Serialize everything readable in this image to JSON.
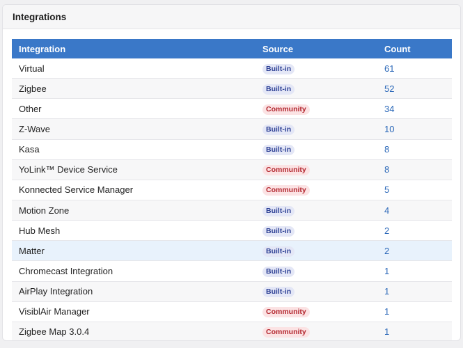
{
  "panel": {
    "title": "Integrations"
  },
  "table": {
    "headers": {
      "integration": "Integration",
      "source": "Source",
      "count": "Count"
    },
    "rows": [
      {
        "name": "Virtual",
        "source": "Built-in",
        "source_type": "builtin",
        "count": "61"
      },
      {
        "name": "Zigbee",
        "source": "Built-in",
        "source_type": "builtin",
        "count": "52"
      },
      {
        "name": "Other",
        "source": "Community",
        "source_type": "community",
        "count": "34"
      },
      {
        "name": "Z-Wave",
        "source": "Built-in",
        "source_type": "builtin",
        "count": "10"
      },
      {
        "name": "Kasa",
        "source": "Built-in",
        "source_type": "builtin",
        "count": "8"
      },
      {
        "name": "YoLink™ Device Service",
        "source": "Community",
        "source_type": "community",
        "count": "8"
      },
      {
        "name": "Konnected Service Manager",
        "source": "Community",
        "source_type": "community",
        "count": "5"
      },
      {
        "name": "Motion Zone",
        "source": "Built-in",
        "source_type": "builtin",
        "count": "4"
      },
      {
        "name": "Hub Mesh",
        "source": "Built-in",
        "source_type": "builtin",
        "count": "2"
      },
      {
        "name": "Matter",
        "source": "Built-in",
        "source_type": "builtin",
        "count": "2"
      },
      {
        "name": "Chromecast Integration",
        "source": "Built-in",
        "source_type": "builtin",
        "count": "1"
      },
      {
        "name": "AirPlay Integration",
        "source": "Built-in",
        "source_type": "builtin",
        "count": "1"
      },
      {
        "name": "VisiblAir Manager",
        "source": "Community",
        "source_type": "community",
        "count": "1"
      },
      {
        "name": "Zigbee Map 3.0.4",
        "source": "Community",
        "source_type": "community",
        "count": "1"
      }
    ],
    "highlighted_row": 9
  },
  "colors": {
    "header_bg": "#3a78c8",
    "count_text": "#2a67b8",
    "builtin_badge_bg": "#e4e7f6",
    "builtin_badge_text": "#2c3f94",
    "community_badge_bg": "#fbe3e4",
    "community_badge_text": "#b3262e",
    "highlight_row_bg": "#e8f2fc"
  }
}
